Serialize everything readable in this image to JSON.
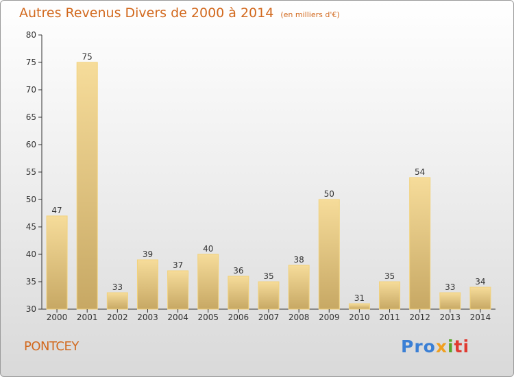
{
  "header": {
    "title": "Autres Revenus Divers de 2000 à 2014",
    "subtitle": "(en milliers d'€)"
  },
  "footer": {
    "commune": "PONTCEY",
    "logo_text": "Proxiti",
    "logo_parts": [
      "Pro",
      "x",
      "i",
      "ti"
    ]
  },
  "colors": {
    "title": "#d2691e",
    "bar_fill_top": "#f6dc9a",
    "bar_fill_bottom": "#c7a864",
    "bar_stroke": "#f2d27c",
    "axis": "#333333"
  },
  "chart_data": {
    "type": "bar",
    "title": "Autres Revenus Divers de 2000 à 2014",
    "subtitle": "(en milliers d'€)",
    "xlabel": "",
    "ylabel": "",
    "categories": [
      "2000",
      "2001",
      "2002",
      "2003",
      "2004",
      "2005",
      "2006",
      "2007",
      "2008",
      "2009",
      "2010",
      "2011",
      "2012",
      "2013",
      "2014"
    ],
    "values": [
      47,
      75,
      33,
      39,
      37,
      40,
      36,
      35,
      38,
      50,
      31,
      35,
      54,
      33,
      34
    ],
    "ylim": [
      30,
      80
    ],
    "yticks": [
      30,
      35,
      40,
      45,
      50,
      55,
      60,
      65,
      70,
      75,
      80
    ],
    "grid": false,
    "legend": "none"
  }
}
